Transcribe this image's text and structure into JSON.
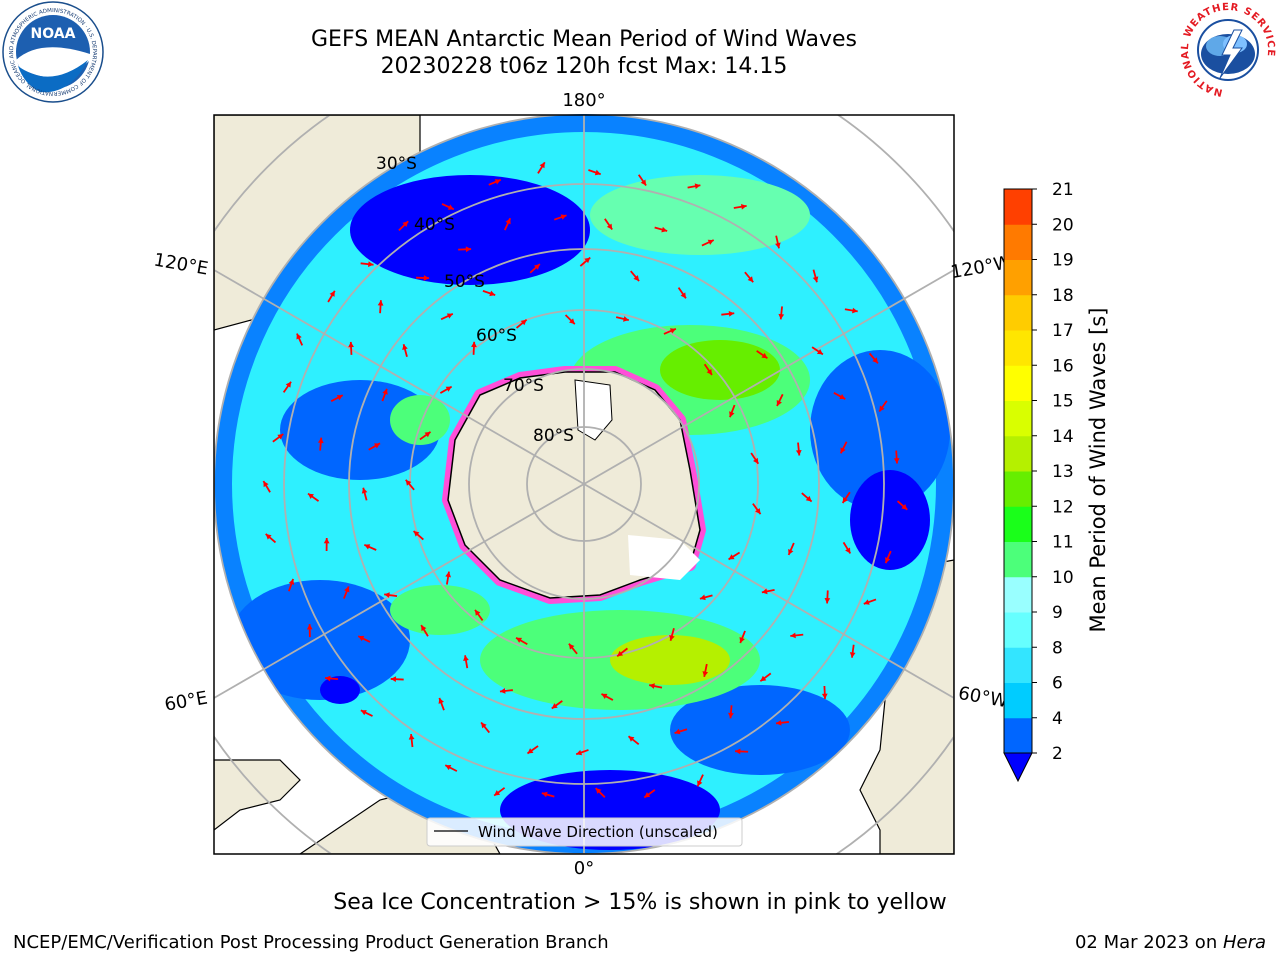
{
  "header": {
    "title_line1": "GEFS MEAN Antarctic Mean Period of Wind Waves",
    "title_line2": "20230228 t06z 120h fcst   Max: 14.15"
  },
  "logos": {
    "left": "NOAA",
    "left_ring_text": "NATIONAL OCEANIC AND ATMOSPHERIC ADMINISTRATION · U.S. DEPARTMENT OF COMMERCE",
    "right_ring_text": "NATIONAL WEATHER SERVICE"
  },
  "map": {
    "projection": "south-polar-stereographic",
    "latitude_labels": [
      "30°S",
      "40°S",
      "50°S",
      "60°S",
      "70°S",
      "80°S"
    ],
    "longitude_labels": {
      "top": "180°",
      "bottom": "0°",
      "upper_left": "120°E",
      "lower_left": "60°E",
      "upper_right": "120°W",
      "lower_right": "60°W"
    },
    "legend_label": "Wind Wave Direction (unscaled)",
    "colors": {
      "land": "#efebd9",
      "ice_edge": "#ff4fd8",
      "arrow": "#ff0000",
      "grid": "#b0b0b0"
    }
  },
  "colorbar": {
    "label": "Mean Period of Wind Waves [s]",
    "ticks": [
      "2",
      "4",
      "6",
      "8",
      "9",
      "10",
      "11",
      "12",
      "13",
      "14",
      "15",
      "16",
      "17",
      "18",
      "19",
      "20",
      "21"
    ],
    "colors": [
      "#0066ff",
      "#00ccff",
      "#33e5ff",
      "#66ffff",
      "#99ffff",
      "#4cff7a",
      "#1aff1a",
      "#66ee00",
      "#b5f000",
      "#d9ff00",
      "#ffff00",
      "#ffe600",
      "#ffcc00",
      "#ffa000",
      "#ff7a00",
      "#ff4000",
      "#ff0000"
    ],
    "under_color": "#0000ff"
  },
  "footer": {
    "note": "Sea Ice Concentration > 15% is shown in pink to yellow",
    "credit_left": "NCEP/EMC/Verification Post Processing Product Generation Branch",
    "credit_date": "02 Mar 2023 on ",
    "credit_host": "Hera"
  }
}
